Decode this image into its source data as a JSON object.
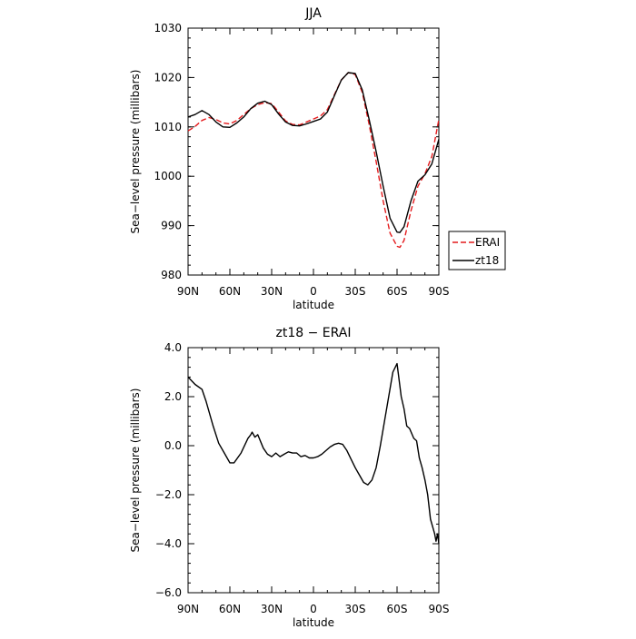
{
  "chart_data": [
    {
      "type": "line",
      "title": "JJA",
      "xlabel": "latitude",
      "ylabel": "Sea−level pressure (millibars)",
      "xlim": [
        90,
        -90
      ],
      "ylim": [
        980,
        1030
      ],
      "yticks": [
        980,
        990,
        1000,
        1010,
        1020,
        1030
      ],
      "ytick_labels": [
        "980",
        "990",
        "1000",
        "1010",
        "1020",
        "1030"
      ],
      "xticks": [
        90,
        60,
        30,
        0,
        -30,
        -60,
        -90
      ],
      "xtick_labels": [
        "90N",
        "60N",
        "30N",
        "0",
        "30S",
        "60S",
        "90S"
      ],
      "legend_position": "right",
      "series": [
        {
          "name": "ERAI",
          "color": "#e41a1c",
          "dash": "dashed",
          "x": [
            90,
            85,
            80,
            75,
            70,
            65,
            60,
            55,
            50,
            45,
            40,
            35,
            30,
            25,
            20,
            15,
            10,
            5,
            0,
            -5,
            -10,
            -15,
            -20,
            -25,
            -30,
            -35,
            -40,
            -45,
            -50,
            -55,
            -60,
            -62,
            -65,
            -70,
            -75,
            -80,
            -85,
            -90
          ],
          "y": [
            1009.2,
            1010.1,
            1011.3,
            1011.9,
            1011.5,
            1010.8,
            1010.6,
            1011.3,
            1012.5,
            1013.7,
            1014.5,
            1014.9,
            1014.7,
            1013.0,
            1011.2,
            1010.5,
            1010.4,
            1011.0,
            1011.6,
            1012.2,
            1013.5,
            1016.5,
            1019.5,
            1021.0,
            1020.6,
            1017.0,
            1010.5,
            1003.0,
            995.0,
            988.5,
            985.8,
            985.6,
            987.0,
            993.0,
            998.0,
            1000.5,
            1004.0,
            1011.5
          ]
        },
        {
          "name": "zt18",
          "color": "#000000",
          "dash": "solid",
          "x": [
            90,
            85,
            80,
            75,
            70,
            65,
            60,
            55,
            50,
            45,
            40,
            35,
            30,
            25,
            20,
            15,
            10,
            5,
            0,
            -5,
            -10,
            -15,
            -20,
            -25,
            -30,
            -35,
            -40,
            -45,
            -50,
            -55,
            -60,
            -62,
            -65,
            -70,
            -75,
            -80,
            -85,
            -90
          ],
          "y": [
            1012.0,
            1012.5,
            1013.3,
            1012.5,
            1011.0,
            1010.0,
            1009.9,
            1010.8,
            1012.0,
            1013.7,
            1014.8,
            1015.2,
            1014.5,
            1012.6,
            1011.0,
            1010.3,
            1010.2,
            1010.6,
            1011.1,
            1011.6,
            1013.0,
            1016.3,
            1019.5,
            1021.0,
            1020.8,
            1017.5,
            1011.5,
            1005.0,
            998.0,
            991.5,
            988.7,
            988.6,
            989.8,
            995.0,
            999.0,
            1000.3,
            1002.5,
            1007.5
          ]
        }
      ]
    },
    {
      "type": "line",
      "title": "zt18 − ERAI",
      "xlabel": "latitude",
      "ylabel": "Sea−level pressure (millibars)",
      "xlim": [
        90,
        -90
      ],
      "ylim": [
        -6,
        4
      ],
      "yticks": [
        -6,
        -4,
        -2,
        0,
        2,
        4
      ],
      "ytick_labels": [
        "−6.0",
        "−4.0",
        "−2.0",
        "0.0",
        "2.0",
        "4.0"
      ],
      "xticks": [
        90,
        60,
        30,
        0,
        -30,
        -60,
        -90
      ],
      "xtick_labels": [
        "90N",
        "60N",
        "30N",
        "0",
        "30S",
        "60S",
        "90S"
      ],
      "series": [
        {
          "color": "#000000",
          "dash": "solid",
          "x": [
            90,
            85,
            80,
            77,
            72,
            68,
            64,
            60,
            57,
            52,
            47,
            45,
            44,
            42,
            40,
            36,
            33,
            30,
            27,
            24,
            21,
            18,
            15,
            12,
            9,
            6,
            3,
            0,
            -3,
            -6,
            -9,
            -12,
            -15,
            -18,
            -21,
            -24,
            -27,
            -30,
            -33,
            -36,
            -39,
            -42,
            -45,
            -48,
            -51,
            -54,
            -57,
            -60,
            -63,
            -65,
            -67,
            -69,
            -72,
            -74,
            -76,
            -78,
            -80,
            -82,
            -84,
            -86,
            -87,
            -88,
            -89,
            -90
          ],
          "y": [
            2.8,
            2.5,
            2.3,
            1.8,
            0.8,
            0.1,
            -0.3,
            -0.7,
            -0.7,
            -0.3,
            0.3,
            0.45,
            0.55,
            0.35,
            0.45,
            -0.1,
            -0.35,
            -0.45,
            -0.3,
            -0.45,
            -0.35,
            -0.25,
            -0.3,
            -0.3,
            -0.45,
            -0.4,
            -0.5,
            -0.5,
            -0.45,
            -0.35,
            -0.2,
            -0.05,
            0.05,
            0.1,
            0.05,
            -0.2,
            -0.55,
            -0.9,
            -1.2,
            -1.5,
            -1.6,
            -1.4,
            -0.9,
            0.0,
            1.0,
            2.0,
            3.0,
            3.35,
            2.0,
            1.5,
            0.8,
            0.7,
            0.3,
            0.2,
            -0.5,
            -0.9,
            -1.4,
            -2.0,
            -3.0,
            -3.4,
            -3.6,
            -3.9,
            -3.6,
            -4.0
          ]
        }
      ]
    }
  ]
}
